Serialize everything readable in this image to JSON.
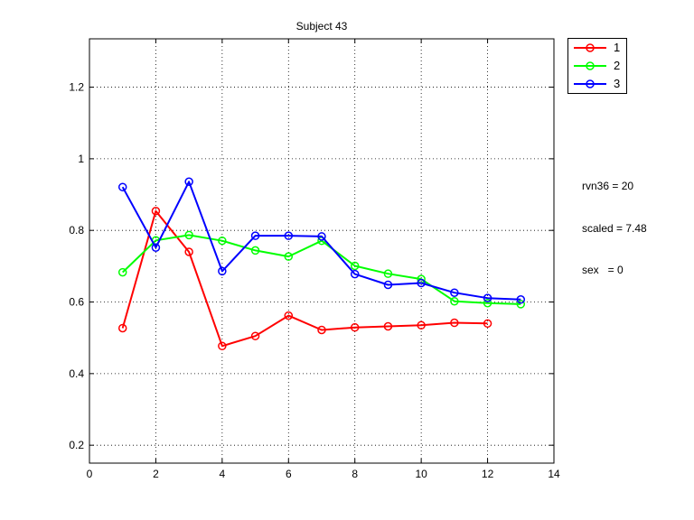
{
  "chart_data": {
    "type": "line",
    "title": "Subject 43",
    "xlabel": "",
    "ylabel": "",
    "xlim": [
      0,
      14
    ],
    "ylim": [
      0.15,
      1.335
    ],
    "xticks": [
      0,
      2,
      4,
      6,
      8,
      10,
      12,
      14
    ],
    "yticks": [
      0.2,
      0.4,
      0.6,
      0.8,
      1,
      1.2
    ],
    "xtick_labels": [
      "0",
      "2",
      "4",
      "6",
      "8",
      "10",
      "12",
      "14"
    ],
    "ytick_labels": [
      "0.2",
      "0.4",
      "0.6",
      "0.8",
      "1",
      "1.2"
    ],
    "grid": true,
    "legend_position": "outside-top-right",
    "series": [
      {
        "name": "1",
        "color": "#ff0000",
        "marker": "circle",
        "x": [
          1,
          2,
          3,
          4,
          5,
          6,
          7,
          8,
          9,
          10,
          11,
          12
        ],
        "y": [
          0.527,
          0.854,
          0.74,
          0.477,
          0.505,
          0.562,
          0.522,
          0.529,
          0.532,
          0.535,
          0.542,
          0.54
        ]
      },
      {
        "name": "2",
        "color": "#00ff00",
        "marker": "circle",
        "x": [
          1,
          2,
          3,
          4,
          5,
          6,
          7,
          8,
          9,
          10,
          11,
          12,
          13
        ],
        "y": [
          0.683,
          0.772,
          0.787,
          0.771,
          0.744,
          0.727,
          0.771,
          0.701,
          0.679,
          0.664,
          0.602,
          0.597,
          0.594
        ]
      },
      {
        "name": "3",
        "color": "#0000ff",
        "marker": "circle",
        "x": [
          1,
          2,
          3,
          4,
          5,
          6,
          7,
          8,
          9,
          10,
          11,
          12,
          13
        ],
        "y": [
          0.921,
          0.752,
          0.936,
          0.686,
          0.785,
          0.785,
          0.783,
          0.678,
          0.648,
          0.653,
          0.626,
          0.611,
          0.607
        ]
      }
    ],
    "annotations": [
      "rvn36 = 20",
      "scaled = 7.48",
      "sex   = 0"
    ]
  }
}
